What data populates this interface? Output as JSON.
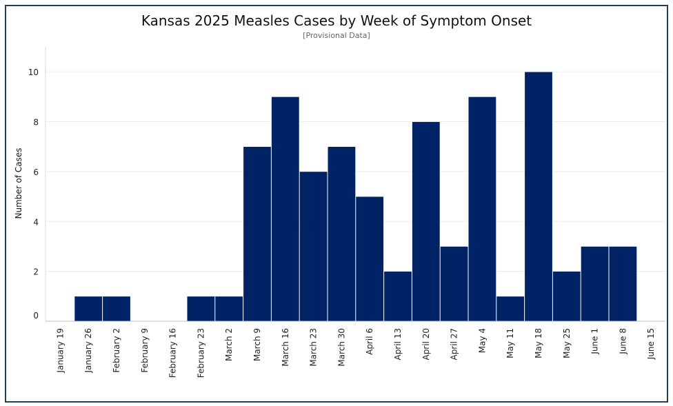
{
  "chart_data": {
    "type": "bar",
    "title": "Kansas 2025 Measles Cases by Week of Symptom Onset",
    "subtitle": "[Provisional Data]",
    "xlabel": "",
    "ylabel": "Number of Cases",
    "ylim": [
      0,
      11
    ],
    "yticks": [
      0,
      2,
      4,
      6,
      8,
      10
    ],
    "grid": true,
    "categories": [
      "January 19",
      "January 26",
      "February 2",
      "February 9",
      "February 16",
      "February 23",
      "March 2",
      "March 9",
      "March 16",
      "March 23",
      "March 30",
      "April 6",
      "April 13",
      "April 20",
      "April 27",
      "May 4",
      "May 11",
      "May 18",
      "May 25",
      "June 1",
      "June 8",
      "June 15"
    ],
    "values": [
      0,
      1,
      1,
      0,
      0,
      1,
      1,
      7,
      9,
      6,
      7,
      5,
      2,
      8,
      3,
      9,
      1,
      10,
      2,
      3,
      3,
      0
    ],
    "bar_color": "#002366"
  }
}
